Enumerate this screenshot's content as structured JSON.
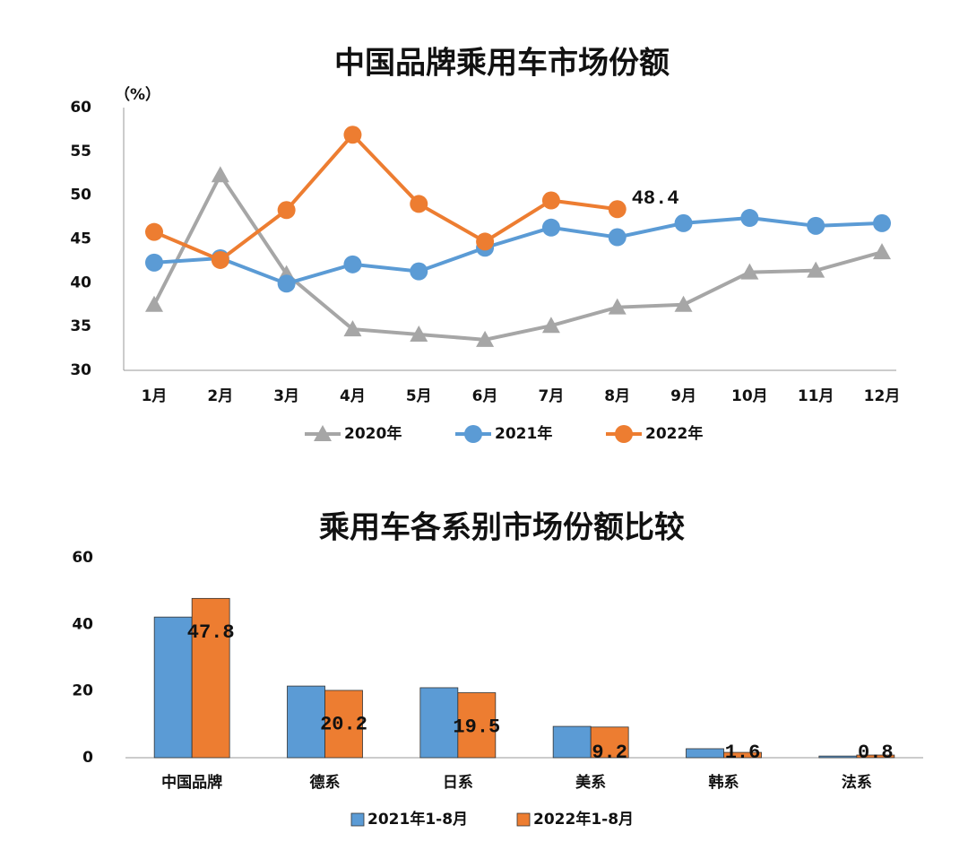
{
  "chart_data": [
    {
      "type": "line",
      "title": "中国品牌乘用车市场份额",
      "y_label": "（%）",
      "categories": [
        "1月",
        "2月",
        "3月",
        "4月",
        "5月",
        "6月",
        "7月",
        "8月",
        "9月",
        "10月",
        "11月",
        "12月"
      ],
      "series": [
        {
          "name": "2020年",
          "color": "#a6a6a6",
          "marker": "triangle",
          "values": [
            37.5,
            52.3,
            41.0,
            34.7,
            34.1,
            33.5,
            35.1,
            37.2,
            37.5,
            41.2,
            41.4,
            43.5
          ]
        },
        {
          "name": "2021年",
          "color": "#5b9bd5",
          "marker": "circle",
          "values": [
            42.3,
            42.8,
            39.9,
            42.1,
            41.3,
            44.0,
            46.3,
            45.2,
            46.8,
            47.4,
            46.5,
            46.8
          ]
        },
        {
          "name": "2022年",
          "color": "#ed7d31",
          "marker": "circle",
          "values": [
            45.8,
            42.6,
            48.3,
            56.9,
            49.0,
            44.7,
            49.4,
            48.4,
            null,
            null,
            null,
            null
          ],
          "last_label": true
        }
      ],
      "ylim": [
        30,
        60
      ],
      "yticks": [
        30,
        35,
        40,
        45,
        50,
        55,
        60
      ],
      "legend": "bottom"
    },
    {
      "type": "bar",
      "title": "乘用车各系别市场份额比较",
      "categories": [
        "中国品牌",
        "德系",
        "日系",
        "美系",
        "韩系",
        "法系"
      ],
      "series": [
        {
          "name": "2021年1-8月",
          "color": "#5b9bd5",
          "values": [
            42.2,
            21.5,
            21.0,
            9.4,
            2.7,
            0.5
          ]
        },
        {
          "name": "2022年1-8月",
          "color": "#ed7d31",
          "values": [
            47.8,
            20.2,
            19.5,
            9.2,
            1.6,
            0.8
          ],
          "data_labels": true
        }
      ],
      "ylim": [
        0,
        60
      ],
      "yticks": [
        0,
        20,
        40,
        60
      ],
      "legend": "bottom"
    }
  ]
}
